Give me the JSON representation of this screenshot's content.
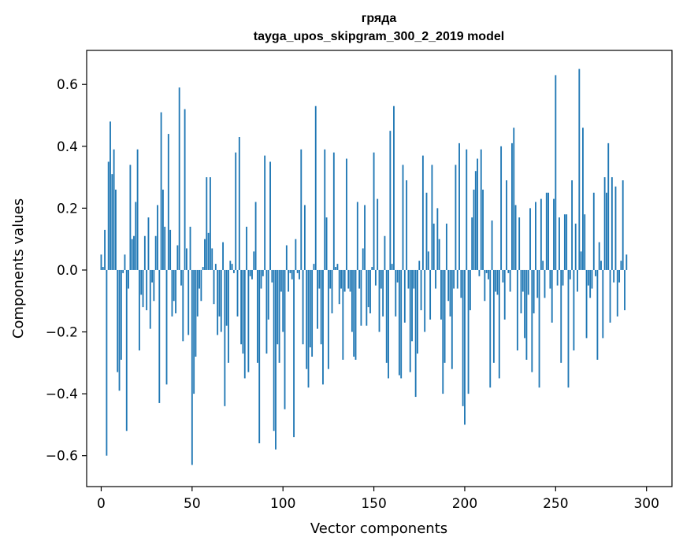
{
  "chart_data": {
    "type": "bar",
    "title": "гряда",
    "subtitle": "tayga_upos_skipgram_300_2_2019 model",
    "xlabel": "Vector components",
    "ylabel": "Components values",
    "xlim": [
      -8,
      314
    ],
    "ylim": [
      -0.7,
      0.71
    ],
    "xticks": [
      0,
      50,
      100,
      150,
      200,
      250,
      300
    ],
    "xtick_labels": [
      "0",
      "50",
      "100",
      "150",
      "200",
      "250",
      "300"
    ],
    "yticks": [
      0.6,
      0.4,
      0.2,
      0.0,
      -0.2,
      -0.4,
      -0.6
    ],
    "ytick_labels": [
      "0.6",
      "0.4",
      "0.2",
      "0.0",
      "−0.2",
      "−0.4",
      "−0.6"
    ],
    "grid": false,
    "bar_color": "#1f77b4",
    "values": [
      0.05,
      0.01,
      0.13,
      -0.6,
      0.35,
      0.48,
      0.31,
      0.39,
      0.26,
      -0.33,
      -0.39,
      -0.29,
      -0.01,
      0.05,
      -0.52,
      -0.06,
      0.34,
      0.1,
      0.11,
      0.22,
      0.39,
      -0.26,
      -0.08,
      -0.12,
      0.11,
      -0.13,
      0.17,
      -0.19,
      -0.04,
      -0.1,
      0.11,
      0.21,
      -0.43,
      0.51,
      0.26,
      0.14,
      -0.37,
      0.44,
      0.13,
      -0.15,
      -0.1,
      -0.14,
      0.08,
      0.59,
      -0.05,
      -0.23,
      0.52,
      0.07,
      -0.21,
      0.14,
      -0.63,
      -0.4,
      -0.28,
      -0.15,
      -0.06,
      -0.1,
      0.01,
      0.1,
      0.3,
      0.12,
      0.3,
      0.07,
      -0.11,
      0.02,
      -0.21,
      -0.15,
      -0.2,
      0.09,
      -0.44,
      -0.18,
      -0.3,
      0.03,
      0.02,
      -0.01,
      0.38,
      -0.15,
      0.43,
      -0.24,
      -0.27,
      -0.35,
      0.14,
      -0.33,
      -0.02,
      -0.03,
      0.06,
      0.22,
      -0.3,
      -0.56,
      -0.06,
      -0.02,
      0.37,
      -0.27,
      -0.16,
      0.35,
      -0.04,
      -0.52,
      -0.58,
      -0.24,
      -0.3,
      -0.07,
      -0.2,
      -0.45,
      0.08,
      -0.07,
      -0.01,
      -0.03,
      -0.54,
      0.1,
      -0.01,
      -0.03,
      0.39,
      -0.24,
      0.21,
      -0.32,
      -0.38,
      -0.25,
      -0.28,
      0.02,
      0.53,
      -0.19,
      -0.06,
      -0.24,
      -0.37,
      0.39,
      0.17,
      -0.32,
      -0.06,
      -0.14,
      0.38,
      0.01,
      0.02,
      -0.11,
      -0.06,
      -0.29,
      -0.07,
      0.36,
      -0.06,
      -0.07,
      -0.2,
      -0.28,
      -0.29,
      0.22,
      -0.06,
      -0.18,
      0.07,
      0.21,
      -0.18,
      -0.12,
      -0.14,
      0.01,
      0.38,
      -0.05,
      0.23,
      -0.2,
      -0.06,
      -0.15,
      0.11,
      -0.3,
      -0.35,
      0.45,
      0.02,
      0.53,
      -0.15,
      -0.04,
      -0.34,
      -0.35,
      0.34,
      -0.17,
      0.29,
      -0.06,
      -0.33,
      -0.23,
      -0.06,
      -0.41,
      -0.27,
      0.03,
      -0.13,
      0.37,
      -0.2,
      0.25,
      0.06,
      -0.16,
      0.34,
      0.15,
      -0.06,
      0.2,
      0.1,
      -0.16,
      -0.4,
      -0.3,
      0.15,
      -0.1,
      -0.15,
      -0.32,
      -0.06,
      0.34,
      -0.06,
      0.41,
      -0.09,
      -0.44,
      -0.5,
      0.39,
      -0.4,
      -0.13,
      0.17,
      0.26,
      0.32,
      0.36,
      -0.02,
      0.39,
      0.26,
      -0.1,
      -0.01,
      -0.03,
      -0.38,
      0.16,
      -0.3,
      -0.07,
      -0.08,
      -0.35,
      0.4,
      -0.04,
      -0.16,
      0.29,
      -0.01,
      -0.07,
      0.41,
      0.46,
      0.21,
      -0.26,
      0.17,
      -0.14,
      -0.07,
      -0.22,
      -0.29,
      -0.08,
      0.2,
      -0.33,
      -0.14,
      0.22,
      -0.09,
      -0.38,
      0.23,
      0.03,
      -0.09,
      0.25,
      0.25,
      -0.06,
      -0.17,
      0.23,
      0.63,
      -0.05,
      0.17,
      -0.3,
      -0.05,
      0.18,
      0.18,
      -0.38,
      -0.03,
      0.29,
      -0.26,
      0.15,
      -0.07,
      0.65,
      0.06,
      0.46,
      0.18,
      -0.22,
      -0.05,
      -0.09,
      -0.06,
      0.25,
      -0.02,
      -0.29,
      0.09,
      0.03,
      -0.22,
      0.3,
      0.25,
      0.41,
      -0.17,
      0.3,
      -0.04,
      0.27,
      -0.15,
      -0.04,
      0.03,
      0.29,
      -0.13,
      0.05
    ]
  }
}
